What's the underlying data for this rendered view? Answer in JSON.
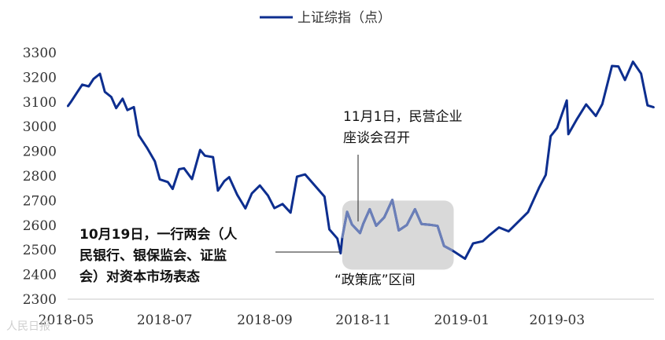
{
  "chart_data": {
    "type": "line",
    "legend": {
      "label": "上证综指（点）",
      "position": "top-center"
    },
    "ylim": [
      2300,
      3300
    ],
    "yticks": [
      2300,
      2400,
      2500,
      2600,
      2700,
      2800,
      2900,
      3000,
      3100,
      3200,
      3300
    ],
    "xticks": [
      "2018-05",
      "2018-07",
      "2018-09",
      "2018-11",
      "2019-01",
      "2019-03"
    ],
    "grid": false,
    "colors": {
      "line": "#0d2e8f",
      "highlight_line": "#6b7fb8",
      "shade": "#d9d9d9",
      "leader": "#222222"
    },
    "series": [
      {
        "name": "上证综指（点）",
        "x": [
          "2018-05-02",
          "2018-05-04",
          "2018-05-08",
          "2018-05-11",
          "2018-05-15",
          "2018-05-18",
          "2018-05-22",
          "2018-05-25",
          "2018-05-29",
          "2018-06-01",
          "2018-06-05",
          "2018-06-08",
          "2018-06-12",
          "2018-06-15",
          "2018-06-20",
          "2018-06-25",
          "2018-06-28",
          "2018-07-03",
          "2018-07-06",
          "2018-07-10",
          "2018-07-13",
          "2018-07-18",
          "2018-07-23",
          "2018-07-26",
          "2018-07-31",
          "2018-08-03",
          "2018-08-07",
          "2018-08-10",
          "2018-08-15",
          "2018-08-20",
          "2018-08-24",
          "2018-08-29",
          "2018-09-03",
          "2018-09-07",
          "2018-09-12",
          "2018-09-17",
          "2018-09-21",
          "2018-09-26",
          "2018-10-08",
          "2018-10-11",
          "2018-10-16",
          "2018-10-18",
          "2018-10-19",
          "2018-10-22",
          "2018-10-25",
          "2018-10-30",
          "2018-11-01",
          "2018-11-05",
          "2018-11-09",
          "2018-11-14",
          "2018-11-19",
          "2018-11-23",
          "2018-11-28",
          "2018-12-03",
          "2018-12-07",
          "2018-12-12",
          "2018-12-17",
          "2018-12-21",
          "2018-12-26",
          "2019-01-03",
          "2019-01-08",
          "2019-01-14",
          "2019-01-18",
          "2019-01-24",
          "2019-01-30",
          "2019-02-11",
          "2019-02-18",
          "2019-02-22",
          "2019-02-25",
          "2019-03-01",
          "2019-03-07",
          "2019-03-08",
          "2019-03-13",
          "2019-03-19",
          "2019-03-25",
          "2019-03-29",
          "2019-04-04",
          "2019-04-08",
          "2019-04-12",
          "2019-04-17",
          "2019-04-22",
          "2019-04-26",
          "2019-04-30"
        ],
        "y": [
          3082,
          3100,
          3140,
          3170,
          3163,
          3193,
          3214,
          3141,
          3120,
          3075,
          3113,
          3067,
          3079,
          2965,
          2915,
          2859,
          2786,
          2775,
          2747,
          2827,
          2831,
          2787,
          2905,
          2882,
          2876,
          2740,
          2779,
          2795,
          2723,
          2668,
          2729,
          2761,
          2720,
          2669,
          2686,
          2651,
          2797,
          2806,
          2716,
          2583,
          2546,
          2486,
          2550,
          2654,
          2603,
          2568,
          2606,
          2665,
          2598,
          2632,
          2703,
          2579,
          2601,
          2665,
          2605,
          2602,
          2597,
          2516,
          2498,
          2464,
          2526,
          2535,
          2559,
          2591,
          2575,
          2653,
          2754,
          2804,
          2961,
          2994,
          3106,
          2969,
          3027,
          3090,
          3043,
          3091,
          3246,
          3244,
          3189,
          3263,
          3215,
          3086,
          3078
        ]
      }
    ],
    "highlight_region": {
      "label": "“政策底”区间",
      "x_start": "2018-10-19",
      "x_end": "2018-12-27",
      "y_start": 2420,
      "y_end": 2700
    },
    "annotations": [
      {
        "line1": "10月19日，一行两会（人",
        "line2": "民银行、银保监会、证监",
        "line3": "会）对资本市场表态"
      },
      {
        "line1": "11月1日，民营企业",
        "line2": "座谈会召开"
      }
    ]
  },
  "watermark": "人民日报"
}
